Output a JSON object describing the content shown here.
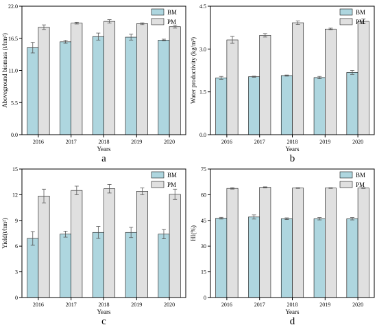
{
  "figure": {
    "colors": {
      "BM": "#aed6df",
      "PM": "#e0e0e0",
      "edge": "#111111",
      "error": "#555555"
    }
  },
  "chart_data": [
    {
      "type": "bar",
      "id": "a",
      "panel_label": "a",
      "categories": [
        "2016",
        "2017",
        "2018",
        "2019",
        "2020"
      ],
      "series": [
        {
          "name": "BM",
          "values": [
            14.9,
            15.9,
            16.8,
            16.7,
            16.2
          ],
          "errors": [
            0.9,
            0.25,
            0.6,
            0.5,
            0.15
          ]
        },
        {
          "name": "PM",
          "values": [
            18.4,
            19.1,
            19.4,
            19.0,
            18.5
          ],
          "errors": [
            0.4,
            0.15,
            0.3,
            0.15,
            0.25
          ]
        }
      ],
      "xlabel": "Years",
      "ylabel": "Aboveground biomass (t/hm²)",
      "ylim": [
        0.0,
        22.0
      ],
      "yticks": [
        "0.0",
        "5.5",
        "11.0",
        "16.5",
        "22.0"
      ],
      "legend": "top-right"
    },
    {
      "type": "bar",
      "id": "b",
      "panel_label": "b",
      "categories": [
        "2016",
        "2017",
        "2018",
        "2019",
        "2020"
      ],
      "series": [
        {
          "name": "BM",
          "values": [
            1.99,
            2.03,
            2.07,
            2.0,
            2.18
          ],
          "errors": [
            0.05,
            0.02,
            0.02,
            0.04,
            0.07
          ]
        },
        {
          "name": "PM",
          "values": [
            3.32,
            3.48,
            3.92,
            3.7,
            3.97
          ],
          "errors": [
            0.12,
            0.06,
            0.06,
            0.03,
            0.08
          ]
        }
      ],
      "xlabel": "Years",
      "ylabel": "Water productivity (kg/m³)",
      "ylim": [
        0.0,
        4.5
      ],
      "yticks": [
        "0.0",
        "1.5",
        "3.0",
        "4.5"
      ],
      "legend": "top-right"
    },
    {
      "type": "bar",
      "id": "c",
      "panel_label": "c",
      "categories": [
        "2016",
        "2017",
        "2018",
        "2019",
        "2020"
      ],
      "series": [
        {
          "name": "BM",
          "values": [
            6.9,
            7.4,
            7.6,
            7.6,
            7.4
          ],
          "errors": [
            0.8,
            0.35,
            0.7,
            0.6,
            0.55
          ]
        },
        {
          "name": "PM",
          "values": [
            11.85,
            12.5,
            12.7,
            12.4,
            12.05
          ],
          "errors": [
            0.8,
            0.5,
            0.5,
            0.4,
            0.6
          ]
        }
      ],
      "xlabel": "Years",
      "ylabel": "Yield(t/hm²)",
      "ylim": [
        0,
        15
      ],
      "yticks": [
        "0",
        "3",
        "6",
        "9",
        "12",
        "15"
      ],
      "legend": "top-right"
    },
    {
      "type": "bar",
      "id": "d",
      "panel_label": "d",
      "categories": [
        "2016",
        "2017",
        "2018",
        "2019",
        "2020"
      ],
      "series": [
        {
          "name": "BM",
          "values": [
            46.3,
            47.0,
            46.0,
            46.0,
            46.0
          ],
          "errors": [
            0.5,
            1.2,
            0.5,
            0.7,
            0.7
          ]
        },
        {
          "name": "PM",
          "values": [
            63.7,
            64.3,
            63.9,
            63.9,
            63.9
          ],
          "errors": [
            0.4,
            0.3,
            0.2,
            0.2,
            0.2
          ]
        }
      ],
      "xlabel": "Years",
      "ylabel": "HI(%)",
      "ylim": [
        0,
        75
      ],
      "yticks": [
        "0",
        "15",
        "30",
        "45",
        "60",
        "75"
      ],
      "legend": "top-right"
    }
  ]
}
